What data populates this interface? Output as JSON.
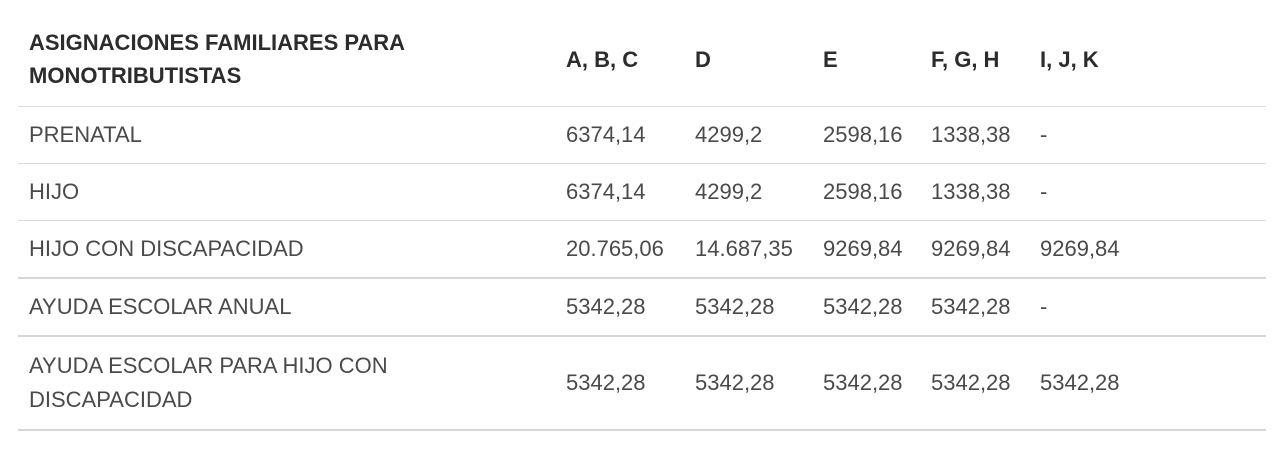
{
  "table": {
    "headers": [
      "ASIGNACIONES FAMILIARES PARA MONOTRIBUTISTAS",
      "A, B, C",
      "D",
      "E",
      "F, G, H",
      "I, J, K"
    ],
    "rows": [
      {
        "label": "PRENATAL",
        "values": [
          "6374,14",
          "4299,2",
          "2598,16",
          "1338,38",
          "-"
        ]
      },
      {
        "label": "HIJO",
        "values": [
          "6374,14",
          "4299,2",
          "2598,16",
          "1338,38",
          "-"
        ]
      },
      {
        "label": "HIJO CON DISCAPACIDAD",
        "values": [
          "20.765,06",
          "14.687,35",
          "9269,84",
          "9269,84",
          "9269,84"
        ]
      },
      {
        "label": "AYUDA ESCOLAR ANUAL",
        "values": [
          "5342,28",
          "5342,28",
          "5342,28",
          "5342,28",
          "-"
        ]
      },
      {
        "label": "AYUDA ESCOLAR PARA HIJO CON DISCAPACIDAD",
        "values": [
          "5342,28",
          "5342,28",
          "5342,28",
          "5342,28",
          "5342,28"
        ]
      }
    ]
  }
}
